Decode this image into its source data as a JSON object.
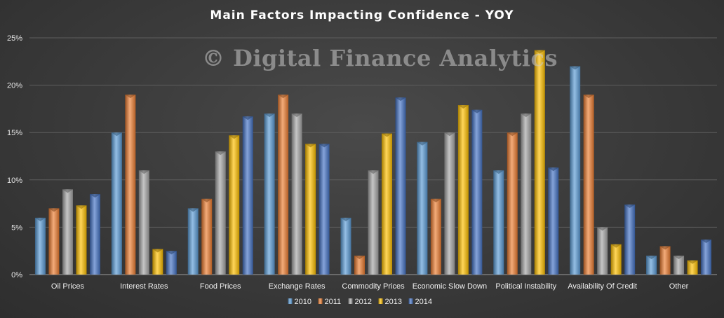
{
  "chart_data": {
    "type": "bar",
    "title": "Main Factors Impacting Confidence  - YOY",
    "watermark": "© Digital Finance Analytics",
    "categories": [
      "Oil Prices",
      "Interest Rates",
      "Food Prices",
      "Exchange Rates",
      "Commodity Prices",
      "Economic Slow Down",
      "Political Instability",
      "Availability Of Credit",
      "Other"
    ],
    "series": [
      {
        "name": "2010",
        "color": "#5b9bd5",
        "values": [
          6,
          15,
          7,
          17,
          6,
          14,
          11,
          22,
          2
        ]
      },
      {
        "name": "2011",
        "color": "#ed7d31",
        "values": [
          7,
          19,
          8,
          19,
          2,
          8,
          15,
          19,
          3
        ]
      },
      {
        "name": "2012",
        "color": "#a5a5a5",
        "values": [
          9,
          11,
          13,
          17,
          11,
          15,
          17,
          5,
          2
        ]
      },
      {
        "name": "2013",
        "color": "#ffc000",
        "values": [
          7.3,
          2.7,
          14.7,
          13.8,
          14.9,
          17.9,
          23.7,
          3.2,
          1.5
        ]
      },
      {
        "name": "2014",
        "color": "#4472c4",
        "values": [
          8.5,
          2.5,
          16.7,
          13.8,
          18.7,
          17.4,
          11.3,
          7.4,
          3.7
        ]
      }
    ],
    "yticks": [
      "0%",
      "5%",
      "10%",
      "15%",
      "20%",
      "25%"
    ],
    "ylim": [
      0,
      25
    ],
    "grid": true,
    "legend_position": "bottom"
  }
}
